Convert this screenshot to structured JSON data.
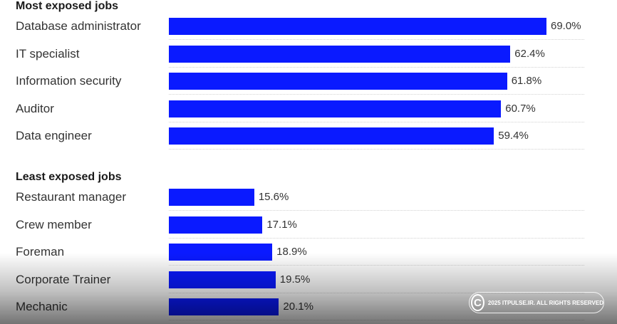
{
  "colors": {
    "bar": "#0a1aff",
    "text": "#333333",
    "title": "#1a1a1a",
    "divider": "#d2d2d2"
  },
  "chart_data": [
    {
      "type": "bar",
      "orientation": "horizontal",
      "title": "Most exposed jobs",
      "categories": [
        "Database administrator",
        "IT specialist",
        "Information security",
        "Auditor",
        "Data engineer"
      ],
      "values": [
        69.0,
        62.4,
        61.8,
        60.7,
        59.4
      ],
      "value_labels": [
        "69.0%",
        "62.4%",
        "61.8%",
        "60.7%",
        "59.4%"
      ],
      "xlim": [
        0,
        69.0
      ],
      "grid": false,
      "legend": "none"
    },
    {
      "type": "bar",
      "orientation": "horizontal",
      "title": "Least exposed jobs",
      "categories": [
        "Restaurant manager",
        "Crew member",
        "Foreman",
        "Corporate Trainer",
        "Mechanic"
      ],
      "values": [
        15.6,
        17.1,
        18.9,
        19.5,
        20.1
      ],
      "value_labels": [
        "15.6%",
        "17.1%",
        "18.9%",
        "19.5%",
        "20.1%"
      ],
      "xlim": [
        0,
        69.0
      ],
      "grid": false,
      "legend": "none"
    }
  ],
  "watermark": {
    "symbol": "C",
    "text": "2025 ITPULSE.IR. ALL RIGHTS RESERVED"
  }
}
